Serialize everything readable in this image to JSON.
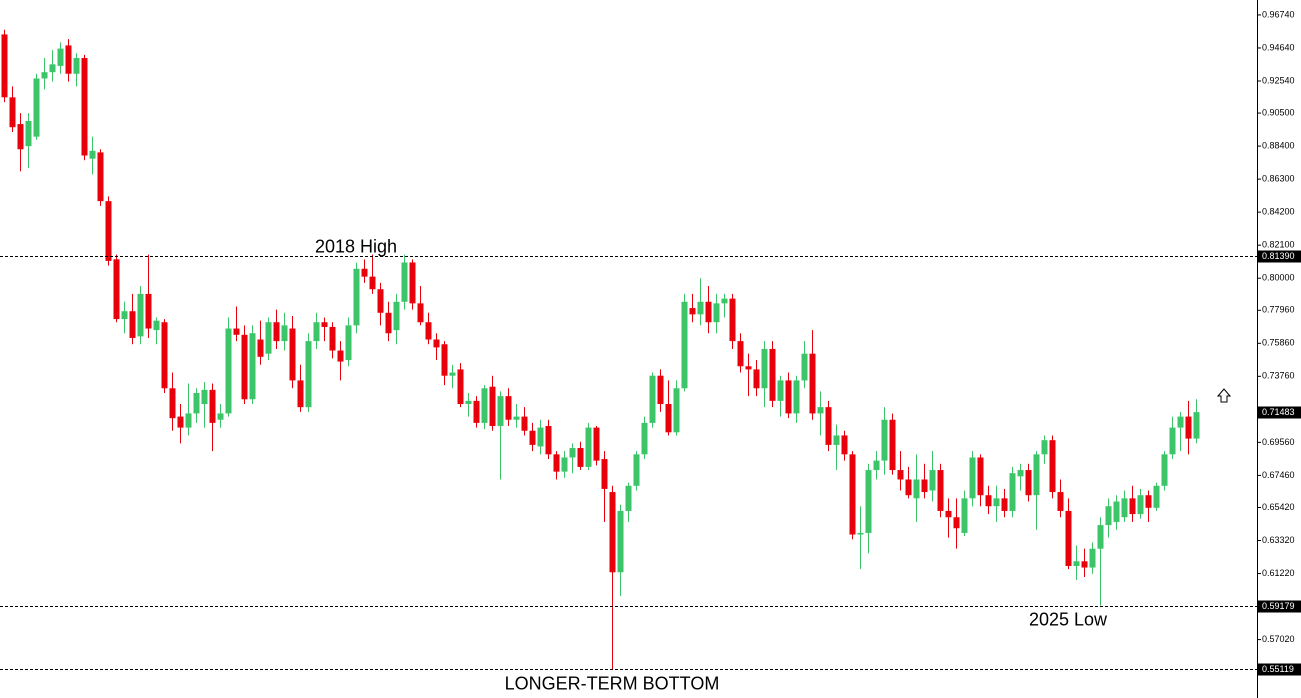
{
  "chart_data": {
    "type": "candlestick",
    "up_color": "#3cc468",
    "down_color": "#e8000b",
    "ylim": [
      0.5445,
      0.9769
    ],
    "yticks": [
      {
        "value": 0.9674,
        "label": "0.96740"
      },
      {
        "value": 0.9464,
        "label": "0.94640"
      },
      {
        "value": 0.9254,
        "label": "0.92540"
      },
      {
        "value": 0.905,
        "label": "0.90500"
      },
      {
        "value": 0.884,
        "label": "0.88400"
      },
      {
        "value": 0.863,
        "label": "0.86300"
      },
      {
        "value": 0.842,
        "label": "0.84200"
      },
      {
        "value": 0.821,
        "label": "0.82100"
      },
      {
        "value": 0.8,
        "label": "0.80000"
      },
      {
        "value": 0.7796,
        "label": "0.77960"
      },
      {
        "value": 0.7586,
        "label": "0.75860"
      },
      {
        "value": 0.7376,
        "label": "0.73760"
      },
      {
        "value": 0.6956,
        "label": "0.69560"
      },
      {
        "value": 0.6746,
        "label": "0.67460"
      },
      {
        "value": 0.6542,
        "label": "0.65420"
      },
      {
        "value": 0.6332,
        "label": "0.63320"
      },
      {
        "value": 0.6122,
        "label": "0.61220"
      },
      {
        "value": 0.5702,
        "label": "0.57020"
      }
    ],
    "levels": [
      {
        "value": 0.8139,
        "label": "0.81390",
        "dashed": true
      },
      {
        "value": 0.71483,
        "label": "0.71483",
        "dashed": false
      },
      {
        "value": 0.59179,
        "label": "0.59179",
        "dashed": true
      },
      {
        "value": 0.55119,
        "label": "0.55119",
        "dashed": true
      }
    ],
    "annotations": [
      {
        "text": "2018 High",
        "index": 44,
        "price": 0.8139
      },
      {
        "text": "2025 Low",
        "index": 133,
        "price": 0.5918
      },
      {
        "text": "LONGER-TERM BOTTOM",
        "index": 76,
        "price": 0.5512
      }
    ],
    "open": [
      0.955,
      0.915,
      0.898,
      0.884,
      0.89,
      0.927,
      0.931,
      0.935,
      0.948,
      0.93,
      0.94,
      0.876,
      0.88,
      0.849,
      0.812,
      0.774,
      0.779,
      0.763,
      0.79,
      0.767,
      0.772,
      0.73,
      0.712,
      0.705,
      0.714,
      0.72,
      0.729,
      0.71,
      0.714,
      0.768,
      0.764,
      0.723,
      0.761,
      0.752,
      0.772,
      0.76,
      0.768,
      0.735,
      0.718,
      0.76,
      0.772,
      0.769,
      0.754,
      0.748,
      0.77,
      0.806,
      0.801,
      0.793,
      0.778,
      0.767,
      0.785,
      0.81,
      0.784,
      0.772,
      0.761,
      0.758,
      0.738,
      0.742,
      0.72,
      0.722,
      0.708,
      0.731,
      0.706,
      0.725,
      0.71,
      0.712,
      0.703,
      0.693,
      0.706,
      0.688,
      0.677,
      0.686,
      0.692,
      0.68,
      0.705,
      0.685,
      0.664,
      0.613,
      0.652,
      0.668,
      0.688,
      0.708,
      0.738,
      0.72,
      0.702,
      0.73,
      0.781,
      0.777,
      0.785,
      0.772,
      0.784,
      0.787,
      0.76,
      0.744,
      0.742,
      0.73,
      0.755,
      0.722,
      0.735,
      0.714,
      0.735,
      0.752,
      0.714,
      0.718,
      0.694,
      0.7,
      0.688,
      0.637,
      0.638,
      0.678,
      0.684,
      0.71,
      0.678,
      0.672,
      0.66,
      0.672,
      0.665,
      0.678,
      0.652,
      0.648,
      0.638,
      0.66,
      0.686,
      0.662,
      0.655,
      0.66,
      0.652,
      0.674,
      0.678,
      0.662,
      0.688,
      0.697,
      0.664,
      0.652,
      0.617,
      0.62,
      0.616,
      0.628,
      0.643,
      0.645,
      0.648,
      0.66,
      0.65,
      0.662,
      0.654,
      0.668,
      0.688,
      0.705,
      0.712,
      0.698
    ],
    "high": [
      0.958,
      0.922,
      0.905,
      0.905,
      0.93,
      0.94,
      0.945,
      0.95,
      0.952,
      0.943,
      0.942,
      0.89,
      0.882,
      0.852,
      0.815,
      0.785,
      0.79,
      0.795,
      0.815,
      0.775,
      0.774,
      0.74,
      0.72,
      0.733,
      0.73,
      0.734,
      0.733,
      0.72,
      0.775,
      0.782,
      0.77,
      0.77,
      0.773,
      0.775,
      0.78,
      0.778,
      0.776,
      0.745,
      0.765,
      0.778,
      0.775,
      0.772,
      0.76,
      0.775,
      0.81,
      0.812,
      0.815,
      0.797,
      0.785,
      0.79,
      0.815,
      0.812,
      0.795,
      0.778,
      0.765,
      0.76,
      0.745,
      0.746,
      0.727,
      0.725,
      0.732,
      0.738,
      0.728,
      0.73,
      0.72,
      0.718,
      0.708,
      0.71,
      0.71,
      0.69,
      0.69,
      0.695,
      0.696,
      0.708,
      0.706,
      0.69,
      0.668,
      0.656,
      0.67,
      0.69,
      0.712,
      0.74,
      0.742,
      0.735,
      0.735,
      0.79,
      0.79,
      0.8,
      0.795,
      0.79,
      0.79,
      0.79,
      0.765,
      0.752,
      0.748,
      0.76,
      0.76,
      0.738,
      0.74,
      0.738,
      0.76,
      0.767,
      0.728,
      0.722,
      0.707,
      0.703,
      0.69,
      0.655,
      0.682,
      0.69,
      0.718,
      0.714,
      0.69,
      0.68,
      0.688,
      0.682,
      0.69,
      0.682,
      0.66,
      0.66,
      0.665,
      0.69,
      0.688,
      0.668,
      0.668,
      0.666,
      0.68,
      0.682,
      0.682,
      0.69,
      0.7,
      0.7,
      0.672,
      0.66,
      0.63,
      0.628,
      0.632,
      0.648,
      0.66,
      0.662,
      0.665,
      0.668,
      0.666,
      0.665,
      0.67,
      0.69,
      0.712,
      0.715,
      0.722,
      0.723
    ],
    "low": [
      0.912,
      0.893,
      0.868,
      0.87,
      0.888,
      0.92,
      0.925,
      0.93,
      0.925,
      0.922,
      0.875,
      0.866,
      0.846,
      0.808,
      0.772,
      0.765,
      0.758,
      0.758,
      0.762,
      0.758,
      0.727,
      0.703,
      0.695,
      0.7,
      0.708,
      0.705,
      0.69,
      0.705,
      0.712,
      0.76,
      0.72,
      0.72,
      0.745,
      0.748,
      0.755,
      0.754,
      0.73,
      0.715,
      0.715,
      0.755,
      0.76,
      0.749,
      0.735,
      0.744,
      0.765,
      0.797,
      0.79,
      0.77,
      0.76,
      0.758,
      0.78,
      0.78,
      0.77,
      0.758,
      0.748,
      0.732,
      0.73,
      0.718,
      0.712,
      0.705,
      0.704,
      0.703,
      0.672,
      0.706,
      0.705,
      0.7,
      0.69,
      0.688,
      0.685,
      0.672,
      0.673,
      0.676,
      0.678,
      0.678,
      0.681,
      0.645,
      0.5512,
      0.598,
      0.645,
      0.665,
      0.685,
      0.705,
      0.715,
      0.7,
      0.7,
      0.728,
      0.772,
      0.77,
      0.765,
      0.765,
      0.775,
      0.755,
      0.74,
      0.725,
      0.725,
      0.718,
      0.718,
      0.712,
      0.711,
      0.708,
      0.73,
      0.71,
      0.7,
      0.69,
      0.678,
      0.684,
      0.634,
      0.615,
      0.625,
      0.672,
      0.675,
      0.675,
      0.665,
      0.66,
      0.645,
      0.66,
      0.658,
      0.648,
      0.635,
      0.628,
      0.636,
      0.655,
      0.655,
      0.65,
      0.645,
      0.648,
      0.648,
      0.665,
      0.658,
      0.64,
      0.682,
      0.66,
      0.648,
      0.615,
      0.608,
      0.61,
      0.612,
      0.5918,
      0.635,
      0.64,
      0.645,
      0.645,
      0.647,
      0.645,
      0.652,
      0.665,
      0.685,
      0.69,
      0.688,
      0.695
    ],
    "close": [
      0.915,
      0.896,
      0.882,
      0.9,
      0.927,
      0.931,
      0.936,
      0.946,
      0.93,
      0.94,
      0.878,
      0.881,
      0.849,
      0.811,
      0.774,
      0.779,
      0.762,
      0.79,
      0.768,
      0.773,
      0.73,
      0.711,
      0.705,
      0.714,
      0.727,
      0.729,
      0.708,
      0.714,
      0.768,
      0.764,
      0.723,
      0.765,
      0.75,
      0.772,
      0.76,
      0.77,
      0.735,
      0.718,
      0.76,
      0.772,
      0.769,
      0.754,
      0.747,
      0.77,
      0.806,
      0.801,
      0.793,
      0.778,
      0.765,
      0.785,
      0.81,
      0.784,
      0.772,
      0.761,
      0.756,
      0.738,
      0.74,
      0.72,
      0.722,
      0.708,
      0.73,
      0.706,
      0.725,
      0.71,
      0.712,
      0.703,
      0.694,
      0.705,
      0.688,
      0.677,
      0.686,
      0.692,
      0.68,
      0.705,
      0.684,
      0.666,
      0.613,
      0.652,
      0.668,
      0.688,
      0.708,
      0.738,
      0.72,
      0.702,
      0.73,
      0.785,
      0.777,
      0.785,
      0.772,
      0.784,
      0.787,
      0.76,
      0.744,
      0.742,
      0.73,
      0.755,
      0.722,
      0.735,
      0.714,
      0.735,
      0.752,
      0.714,
      0.718,
      0.694,
      0.7,
      0.688,
      0.637,
      0.638,
      0.678,
      0.684,
      0.71,
      0.678,
      0.672,
      0.662,
      0.672,
      0.664,
      0.678,
      0.652,
      0.648,
      0.641,
      0.66,
      0.686,
      0.662,
      0.655,
      0.66,
      0.652,
      0.676,
      0.678,
      0.662,
      0.688,
      0.697,
      0.664,
      0.652,
      0.617,
      0.62,
      0.616,
      0.628,
      0.643,
      0.655,
      0.658,
      0.66,
      0.65,
      0.662,
      0.654,
      0.668,
      0.688,
      0.705,
      0.712,
      0.698,
      0.71483
    ]
  }
}
